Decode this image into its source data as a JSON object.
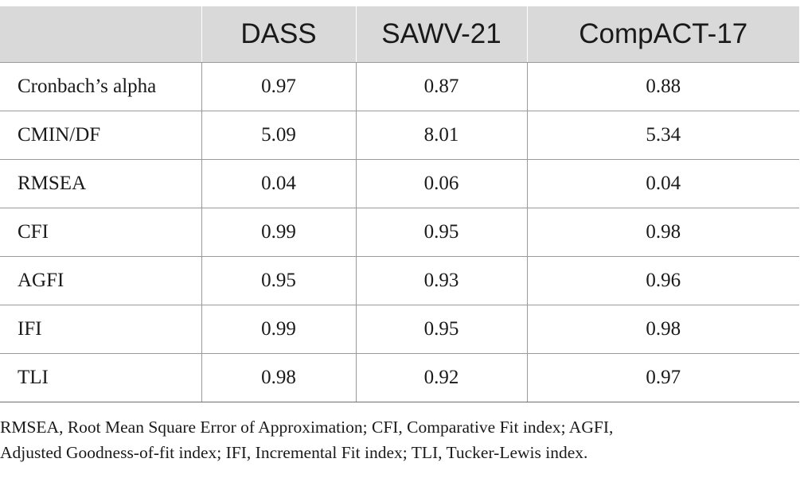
{
  "table": {
    "headers": [
      "",
      "DASS",
      "SAWV-21",
      "CompACT-17"
    ],
    "rows": [
      [
        "Cronbach’s alpha",
        "0.97",
        "0.87",
        "0.88"
      ],
      [
        "CMIN/DF",
        "5.09",
        "8.01",
        "5.34"
      ],
      [
        "RMSEA",
        "0.04",
        "0.06",
        "0.04"
      ],
      [
        "CFI",
        "0.99",
        "0.95",
        "0.98"
      ],
      [
        "AGFI",
        "0.95",
        "0.93",
        "0.96"
      ],
      [
        "IFI",
        "0.99",
        "0.95",
        "0.98"
      ],
      [
        "TLI",
        "0.98",
        "0.92",
        "0.97"
      ]
    ]
  },
  "footnote": {
    "line1": "RMSEA, Root Mean Square Error of Approximation; CFI, Comparative Fit index; AGFI,",
    "line2": "Adjusted Goodness-of-fit index; IFI, Incremental Fit index; TLI, Tucker-Lewis index."
  }
}
